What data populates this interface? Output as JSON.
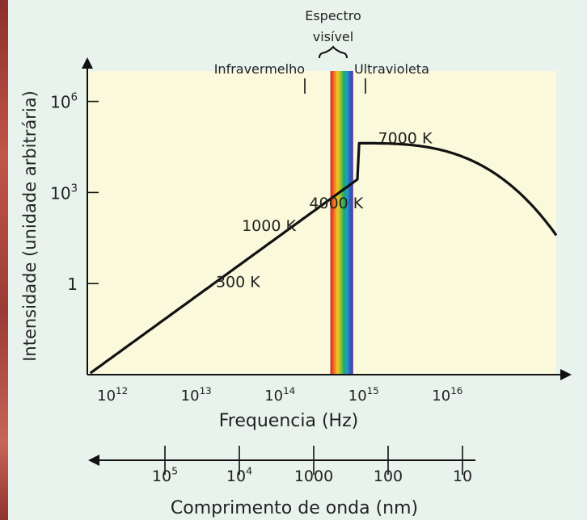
{
  "chart_data": {
    "type": "line",
    "xscale": "log",
    "yscale": "log",
    "xlim": [
      500000000000.0,
      2e+17
    ],
    "ylim_decades": [
      -3,
      7
    ],
    "ylabel": "Intensidade (unidade arbitrária)",
    "xlabel": "Frequencia (Hz)",
    "x_tick_labels": [
      {
        "pre": "10",
        "exp": "12",
        "value": 1000000000000.0
      },
      {
        "pre": "10",
        "exp": "13",
        "value": 10000000000000.0
      },
      {
        "pre": "10",
        "exp": "14",
        "value": 100000000000000.0
      },
      {
        "pre": "10",
        "exp": "15",
        "value": 1000000000000000.0
      },
      {
        "pre": "10",
        "exp": "16",
        "value": 1e+16
      }
    ],
    "y_tick_labels": [
      {
        "pre": "10",
        "exp": "6",
        "value": 1000000.0
      },
      {
        "pre": "10",
        "exp": "3",
        "value": 1000.0
      },
      {
        "pre": "1",
        "exp": "",
        "value": 1
      }
    ],
    "series": [
      {
        "name": "300 K",
        "peak_hz": 45000000000000.0,
        "peak_intensity": 10
      },
      {
        "name": "1000 K",
        "peak_hz": 110000000000000.0,
        "peak_intensity": 630
      },
      {
        "name": "4000 K",
        "peak_hz": 360000000000000.0,
        "peak_intensity": 4000
      },
      {
        "name": "7000 K",
        "peak_hz": 860000000000000.0,
        "peak_intensity": 42000
      }
    ],
    "annotations": {
      "visible_title_line1": "Espectro",
      "visible_title_line2": "visível",
      "infrared": "Infravermelho",
      "ultraviolet": "Ultravioleta",
      "visible_band_hz": [
        400000000000000.0,
        750000000000000.0
      ]
    },
    "wavelength_axis": {
      "label": "Comprimento de onda (nm)",
      "ticks": [
        {
          "pre": "10",
          "exp": "5",
          "value_nm": 100000
        },
        {
          "pre": "10",
          "exp": "4",
          "value_nm": 10000
        },
        {
          "pre": "1000",
          "exp": "",
          "value_nm": 1000
        },
        {
          "pre": "100",
          "exp": "",
          "value_nm": 100
        },
        {
          "pre": "10",
          "exp": "",
          "value_nm": 10
        }
      ]
    }
  },
  "colors": {
    "plot_background": "#fbf9dc",
    "panel_background": "#e7f3ec",
    "curve": "#111111",
    "spectrum": [
      "#d8202a",
      "#ef6a1f",
      "#f8c21c",
      "#8cc63e",
      "#21a55a",
      "#1da0d8",
      "#2f5fb5",
      "#5a3b9c"
    ]
  }
}
